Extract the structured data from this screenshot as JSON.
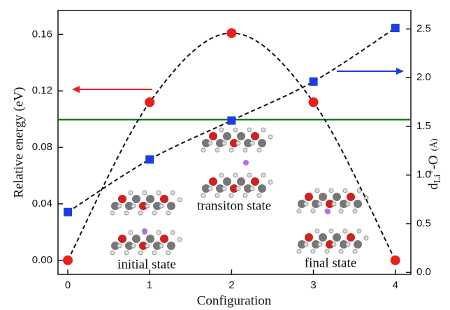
{
  "chart_data": {
    "type": "line",
    "xlabel": "Configuration",
    "ylabel": "Relative energy (eV)",
    "y2label": [
      "d",
      "Li",
      "+",
      "-O",
      "(Å)"
    ],
    "x": [
      0,
      1,
      2,
      3,
      4
    ],
    "xlim": [
      -0.12,
      4.19
    ],
    "xticks": [
      0,
      1,
      2,
      3,
      4
    ],
    "ylim": [
      -0.01,
      0.177
    ],
    "yticks": [
      {
        "value": 0,
        "label": "0.00"
      },
      0.04,
      0.08,
      0.12,
      0.16
    ],
    "y2lim": [
      -0.02,
      2.69
    ],
    "y2ticks": [
      {
        "value": 0,
        "label": "0.0"
      },
      0.5,
      {
        "value": 1,
        "label": "1.0"
      },
      1.5,
      {
        "value": 2,
        "label": "2.0"
      },
      2.5
    ],
    "series": [
      {
        "color": "#e8201c",
        "marker": "circle",
        "values": [
          0,
          0.112,
          0.161,
          0.112,
          0
        ]
      },
      {
        "color": "#1a3fe0",
        "marker": "square",
        "axis": "y2",
        "values": [
          0.62,
          1.16,
          1.56,
          1.96,
          2.51
        ]
      }
    ],
    "reference_line": {
      "value": 1.57,
      "axis": "y2",
      "color": "#1a7a1a"
    },
    "annotations": [
      "initial state",
      "transiton state",
      "final state"
    ]
  }
}
